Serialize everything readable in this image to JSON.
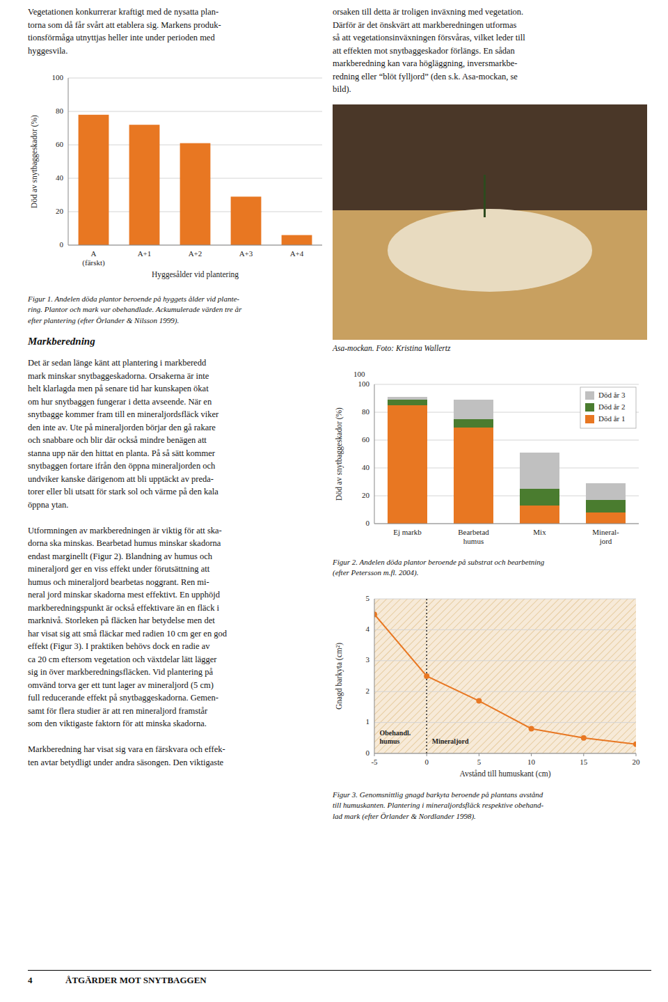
{
  "chart_data": [
    {
      "type": "bar",
      "title": "Figur 1. Andelen döda plantor beroende på hyggets ålder vid plante-\nring. Plantor och mark var obehandlade. Ackumulerade värden tre år\nefter plantering (efter Örlander & Nilsson 1999).",
      "categories": [
        "A\n(färskt)",
        "A+1",
        "A+2",
        "A+3",
        "A+4"
      ],
      "values": [
        78,
        72,
        61,
        29,
        6
      ],
      "color": "#E87722",
      "xlabel": "Hyggesålder vid plantering",
      "ylabel": "Död av snytbaggeskador (%)",
      "ylim": [
        0,
        100
      ],
      "yticks": [
        0,
        20,
        40,
        60,
        80,
        100
      ],
      "grid": true
    },
    {
      "type": "bar",
      "stacked": true,
      "title": "Figur 2. Andelen döda plantor beroende på substrat och bearbetning\n(efter Petersson m.fl. 2004).",
      "categories": [
        "Ej markb",
        "Bearbetad\nhumus",
        "Mix",
        "Mineral-\njord"
      ],
      "series": [
        {
          "name": "Död år 1",
          "color": "#E87722",
          "values": [
            85,
            69,
            13,
            8
          ]
        },
        {
          "name": "Död år 2",
          "color": "#4a7c2f",
          "values": [
            4,
            6,
            12,
            9
          ]
        },
        {
          "name": "Död år 3",
          "color": "#c0c0c0",
          "values": [
            2,
            14,
            26,
            12
          ]
        }
      ],
      "ylabel": "Död av snytbaggeskador (%)",
      "ylim": [
        0,
        100
      ],
      "yticks": [
        0,
        20,
        40,
        60,
        80,
        100
      ],
      "grid": true,
      "legend": "upper right",
      "annotations": [
        {
          "text": "100"
        }
      ]
    },
    {
      "type": "line",
      "title": "Figur 3. Genomsnittlig gnagd barkyta beroende på plantans avstånd\ntill humuskanten. Plantering i mineraljordsfläck respektive obehand-\nlad mark (efter Örlander & Nordlander 1998).",
      "x": [
        -5,
        0,
        5,
        10,
        15,
        20
      ],
      "values": [
        4.5,
        2.5,
        1.7,
        0.8,
        0.5,
        0.3
      ],
      "color": "#E87722",
      "marker": "circle",
      "xlabel": "Avstånd till humuskant (cm)",
      "ylabel": "Gnagd barkyta (cm²)",
      "xlim": [
        -5,
        20
      ],
      "ylim": [
        0,
        5
      ],
      "xticks": [
        -5,
        0,
        5,
        10,
        15,
        20
      ],
      "yticks": [
        0,
        1,
        2,
        3,
        4,
        5
      ],
      "grid": true,
      "vlines": [
        0
      ],
      "annotations": [
        {
          "text": "Obehandl.\nhumus",
          "x": -4.5,
          "y": 0.25
        },
        {
          "text": "Mineraljord",
          "x": 0.5,
          "y": 0.25
        }
      ]
    }
  ],
  "left_top_text": "Vegetationen konkurrerar kraftigt med de nysatta plan-\ntorna som då får svårt att etablera sig. Markens produk-\ntionsförmåga utnyttjas heller inte under perioden med\nhyggesvila.",
  "right_top_text": "orsaken till detta är troligen inväxning med vegetation.\nDärför är det önskvärt att markberedningen utformas\nså att vegetationsinväxningen försvåras, vilket leder till\natt effekten mot snytbaggeskador förlängs. En sådan\nmarkberedning kan vara högläggning, inversmarkbe-\nredning eller “blöt fylljord” (den s.k. Asa-mockan, se\nbild).",
  "section_title": "Markberedning",
  "body_text": "Det är sedan länge känt att plantering i markberedd\nmark minskar snytbaggeskadorna. Orsakerna är inte\nhelt klarlagda men på senare tid har kunskapen ökat\nom hur snytbaggen fungerar i detta avseende. När en\nsnytbagge kommer fram till en mineraljordsfläck viker\nden inte av. Ute på mineraljorden börjar den gå rakare\noch snabbare och blir där också mindre benägen att\nstanna upp när den hittat en planta. På så sätt kommer\nsnytbaggen fortare ifrån den öppna mineraljorden och\nundviker kanske därigenom att bli upptäckt av preda-\ntorer eller bli utsatt för stark sol och värme på den kala\nöppna ytan.\n\nUtformningen av markberedningen är viktig för att ska-\ndorna ska minskas. Bearbetad humus minskar skadorna\nendast marginellt (Figur 2). Blandning av humus och\nmineraljord ger en viss effekt under förutsättning att\nhumus och mineraljord bearbetas noggrant. Ren mi-\nneral jord minskar skadorna mest effektivt. En upphöjd\nmarkberedningspunkt är också effektivare än en fläck i\nmarknivå. Storleken på fläcken har betydelse men det\nhar visat sig att små fläckar med radien 10 cm ger en god\neffekt (Figur 3). I praktiken behövs dock en radie av\nca 20 cm eftersom vegetation och växtdelar lätt lägger\nsig in över markberedningsfläcken. Vid plantering på\nomvänd torva ger ett tunt lager av mineraljord (5 cm)\nfull reducerande effekt på snytbaggeskadorna. Gemen-\nsamt för flera studier är att ren mineraljord framstår\nsom den viktigaste faktorn för att minska skadorna.\n\nMarkberedning har visat sig vara en färskvara och effek-\nten avtar betydligt under andra säsongen. Den viktigaste",
  "photo_caption": "Asa-mockan. Foto: Kristina Wallertz",
  "footer_left": "4",
  "footer_right": "ÅTGÄRDER MOT SNYTBAGGEN"
}
